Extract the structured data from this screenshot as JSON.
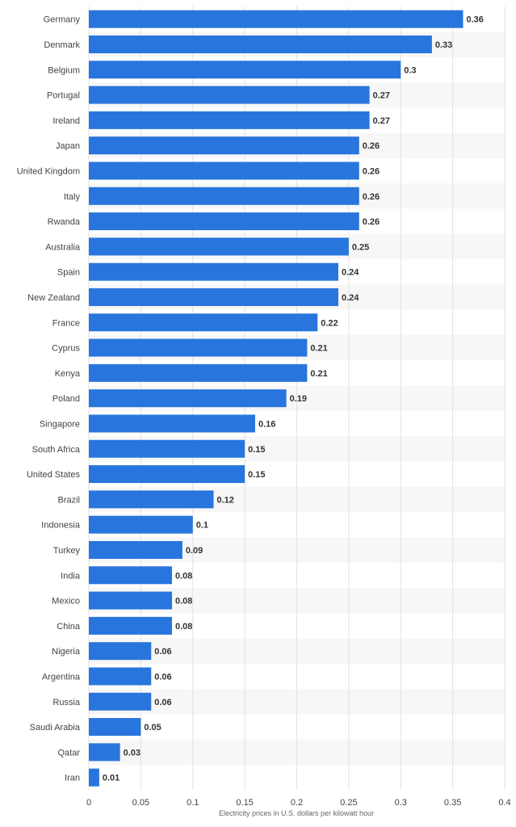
{
  "chart_data": {
    "type": "bar",
    "orientation": "horizontal",
    "categories": [
      "Germany",
      "Denmark",
      "Belgium",
      "Portugal",
      "Ireland",
      "Japan",
      "United Kingdom",
      "Italy",
      "Rwanda",
      "Australia",
      "Spain",
      "New Zealand",
      "France",
      "Cyprus",
      "Kenya",
      "Poland",
      "Singapore",
      "South Africa",
      "United States",
      "Brazil",
      "Indonesia",
      "Turkey",
      "India",
      "Mexico",
      "China",
      "Nigeria",
      "Argentina",
      "Russia",
      "Saudi Arabia",
      "Qatar",
      "Iran"
    ],
    "values": [
      0.36,
      0.33,
      0.3,
      0.27,
      0.27,
      0.26,
      0.26,
      0.26,
      0.26,
      0.25,
      0.24,
      0.24,
      0.22,
      0.21,
      0.21,
      0.19,
      0.16,
      0.15,
      0.15,
      0.12,
      0.1,
      0.09,
      0.08,
      0.08,
      0.08,
      0.06,
      0.06,
      0.06,
      0.05,
      0.03,
      0.01
    ],
    "value_labels": [
      "0.36",
      "0.33",
      "0.3",
      "0.27",
      "0.27",
      "0.26",
      "0.26",
      "0.26",
      "0.26",
      "0.25",
      "0.24",
      "0.24",
      "0.22",
      "0.21",
      "0.21",
      "0.19",
      "0.16",
      "0.15",
      "0.15",
      "0.12",
      "0.1",
      "0.09",
      "0.08",
      "0.08",
      "0.08",
      "0.06",
      "0.06",
      "0.06",
      "0.05",
      "0.03",
      "0.01"
    ],
    "x_ticks": [
      "0",
      "0.05",
      "0.1",
      "0.15",
      "0.2",
      "0.25",
      "0.3",
      "0.35",
      "0.4"
    ],
    "xlabel": "Electricity prices in U.S. dollars per kilowatt hour",
    "ylabel": "",
    "xlim": [
      0,
      0.4
    ],
    "grid": true,
    "alternating_row_shading": true,
    "bar_color": "#2876dd",
    "stripe_color": "#f7f7f7",
    "grid_color": "#e2e2e2"
  }
}
